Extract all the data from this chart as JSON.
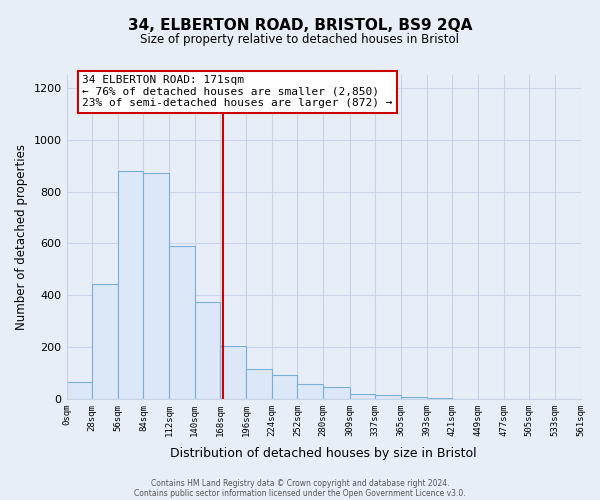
{
  "title": "34, ELBERTON ROAD, BRISTOL, BS9 2QA",
  "subtitle": "Size of property relative to detached houses in Bristol",
  "xlabel": "Distribution of detached houses by size in Bristol",
  "ylabel": "Number of detached properties",
  "bar_color": "#dce8f8",
  "bar_edge_color": "#7ab0d8",
  "background_color": "#e8eef8",
  "grid_color": "#c8d4e8",
  "bins": [
    0,
    28,
    56,
    84,
    112,
    140,
    168,
    196,
    224,
    252,
    280,
    309,
    337,
    365,
    393,
    421,
    449,
    477,
    505,
    533,
    561
  ],
  "bin_labels": [
    "0sqm",
    "28sqm",
    "56sqm",
    "84sqm",
    "112sqm",
    "140sqm",
    "168sqm",
    "196sqm",
    "224sqm",
    "252sqm",
    "280sqm",
    "309sqm",
    "337sqm",
    "365sqm",
    "393sqm",
    "421sqm",
    "449sqm",
    "477sqm",
    "505sqm",
    "533sqm",
    "561sqm"
  ],
  "values": [
    65,
    445,
    880,
    870,
    590,
    375,
    205,
    115,
    90,
    58,
    45,
    20,
    15,
    5,
    3,
    0,
    0,
    0,
    0,
    0
  ],
  "property_line_x": 171,
  "property_line_color": "#cc0000",
  "ylim": [
    0,
    1250
  ],
  "yticks": [
    0,
    200,
    400,
    600,
    800,
    1000,
    1200
  ],
  "annotation_title": "34 ELBERTON ROAD: 171sqm",
  "annotation_line1": "← 76% of detached houses are smaller (2,850)",
  "annotation_line2": "23% of semi-detached houses are larger (872) →",
  "annotation_box_color": "#ffffff",
  "annotation_box_edge": "#cc0000",
  "footer1": "Contains HM Land Registry data © Crown copyright and database right 2024.",
  "footer2": "Contains public sector information licensed under the Open Government Licence v3.0."
}
